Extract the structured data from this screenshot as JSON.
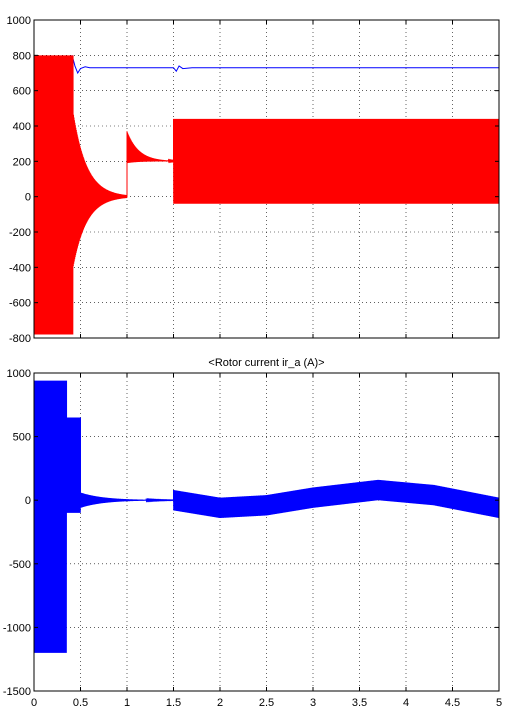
{
  "chart_data": [
    {
      "type": "line",
      "title": "",
      "xlabel": "",
      "ylabel": "",
      "xlim": [
        0,
        5
      ],
      "ylim": [
        -800,
        1000
      ],
      "xticks": [],
      "yticks": [
        "1000",
        "800",
        "600",
        "400",
        "200",
        "0",
        "-200",
        "-400",
        "-600",
        "-800"
      ],
      "grid": true,
      "series": [
        {
          "color": "#0000ff",
          "style": "line",
          "x": [
            0,
            0.05,
            0.1,
            0.15,
            0.2,
            0.25,
            0.3,
            0.35,
            0.38,
            0.41,
            0.44,
            0.47,
            0.5,
            0.55,
            0.6,
            1.0,
            1.5,
            1.53,
            1.56,
            1.6,
            1.7,
            2.0,
            3.0,
            4.0,
            5.0
          ],
          "y": [
            0,
            140,
            200,
            230,
            240,
            250,
            300,
            400,
            600,
            800,
            740,
            700,
            725,
            735,
            730,
            730,
            730,
            710,
            740,
            725,
            730,
            730,
            730,
            730,
            730
          ]
        },
        {
          "color": "#ff0000",
          "style": "oscillation",
          "envelope": [
            {
              "from": 0.0,
              "to": 0.42,
              "max": 800,
              "min": -780
            },
            {
              "from": 0.42,
              "to": 1.0,
              "max": 480,
              "min": -400,
              "decaying_to": 0
            },
            {
              "from": 1.0,
              "to": 1.5,
              "max": 370,
              "min": 190,
              "decaying_to": 200
            },
            {
              "from": 1.5,
              "to": 5.0,
              "max": 440,
              "min": -40
            }
          ]
        }
      ]
    },
    {
      "type": "line",
      "title": "<Rotor current ir_a (A)>",
      "xlabel": "",
      "ylabel": "",
      "xlim": [
        0,
        5
      ],
      "ylim": [
        -1500,
        1000
      ],
      "xticks": [
        "0",
        "0.5",
        "1",
        "1.5",
        "2",
        "2.5",
        "3",
        "3.5",
        "4",
        "4.5",
        "5"
      ],
      "yticks": [
        "1000",
        "500",
        "0",
        "-500",
        "-1000",
        "-1500"
      ],
      "grid": true,
      "series": [
        {
          "color": "#0000ff",
          "style": "oscillation",
          "envelope": [
            {
              "from": 0.0,
              "to": 0.35,
              "max": 940,
              "min": -1200
            },
            {
              "from": 0.35,
              "to": 0.5,
              "max": 650,
              "min": -100
            },
            {
              "from": 0.5,
              "to": 1.5,
              "max": 60,
              "min": -60,
              "decaying_to": 0
            },
            {
              "from": 1.5,
              "to": 5.0,
              "amplitude": 80,
              "center": [
                [
                  1.5,
                  0
                ],
                [
                  2.0,
                  -60
                ],
                [
                  2.5,
                  -40
                ],
                [
                  3.0,
                  20
                ],
                [
                  3.7,
                  80
                ],
                [
                  4.3,
                  40
                ],
                [
                  5.0,
                  -60
                ]
              ]
            }
          ]
        }
      ]
    }
  ]
}
